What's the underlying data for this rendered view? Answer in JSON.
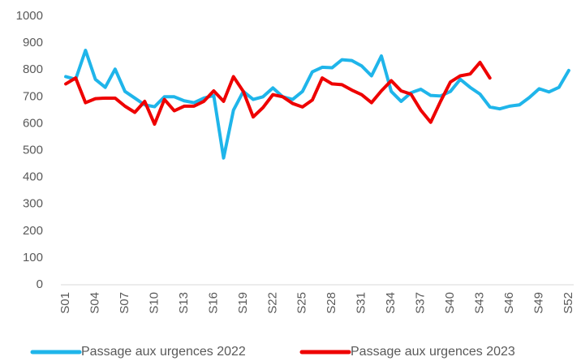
{
  "chart_data": {
    "type": "line",
    "categories": [
      "S01",
      null,
      null,
      "S04",
      null,
      null,
      "S07",
      null,
      null,
      "S10",
      null,
      null,
      "S13",
      null,
      null,
      "S16",
      null,
      null,
      "S19",
      null,
      null,
      "S22",
      null,
      null,
      "S25",
      null,
      null,
      "S28",
      null,
      null,
      "S31",
      null,
      null,
      "S34",
      null,
      null,
      "S37",
      null,
      null,
      "S40",
      null,
      null,
      "S43",
      null,
      null,
      "S46",
      null,
      null,
      "S49",
      null,
      null,
      "S52"
    ],
    "series": [
      {
        "name": "Passage aux urgences 2022",
        "color": "#1fb5ea",
        "values": [
          775,
          765,
          873,
          765,
          735,
          803,
          720,
          695,
          670,
          663,
          700,
          700,
          685,
          678,
          695,
          705,
          472,
          650,
          720,
          690,
          700,
          733,
          700,
          690,
          720,
          793,
          810,
          808,
          838,
          835,
          815,
          778,
          852,
          720,
          683,
          715,
          728,
          705,
          703,
          720,
          765,
          735,
          710,
          662,
          655,
          665,
          670,
          697,
          730,
          718,
          735,
          798
        ]
      },
      {
        "name": "Passage aux urgences 2023",
        "color": "#ee0000",
        "values": [
          748,
          770,
          678,
          693,
          695,
          695,
          665,
          642,
          683,
          598,
          690,
          648,
          665,
          665,
          683,
          722,
          683,
          775,
          720,
          625,
          660,
          708,
          700,
          675,
          662,
          688,
          770,
          748,
          745,
          725,
          708,
          678,
          722,
          760,
          722,
          710,
          650,
          605,
          683,
          755,
          778,
          785,
          828,
          770,
          null,
          null,
          null,
          null,
          null,
          null,
          null,
          null
        ]
      }
    ],
    "ylim": [
      0,
      1000
    ],
    "yticks": [
      0,
      100,
      200,
      300,
      400,
      500,
      600,
      700,
      800,
      900,
      1000
    ],
    "grid": false,
    "legend": "bottom"
  }
}
